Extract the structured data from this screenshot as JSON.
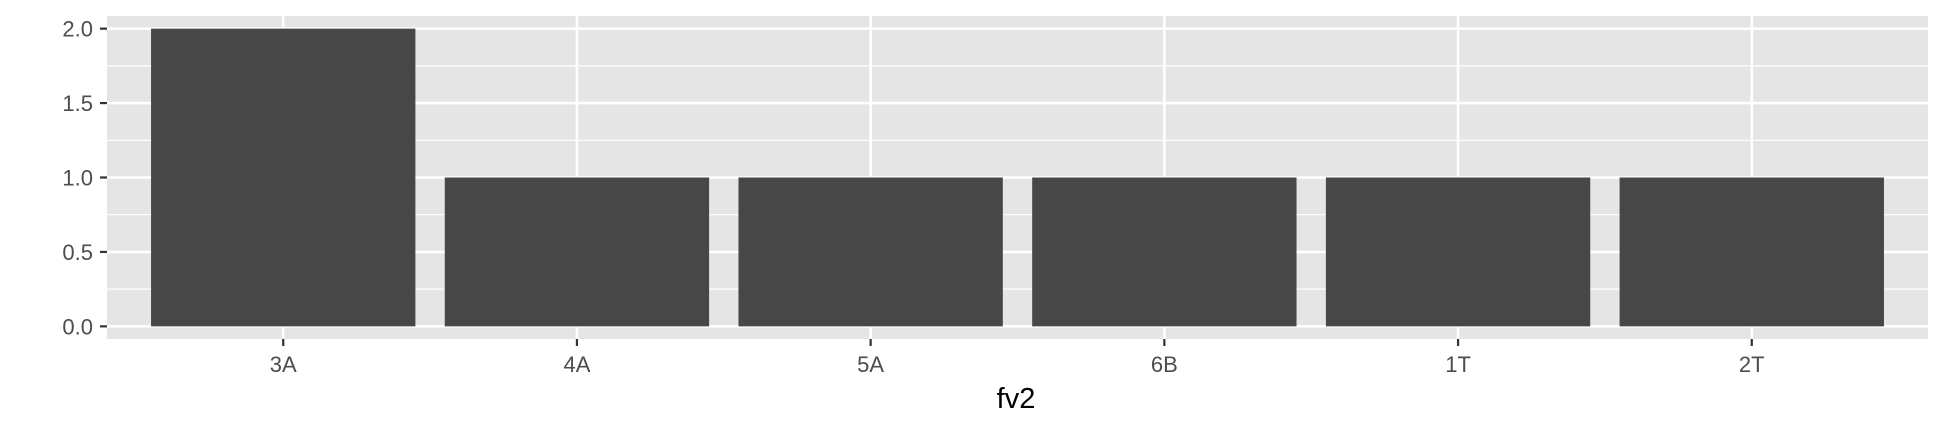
{
  "chart_data": {
    "type": "bar",
    "categories": [
      "3A",
      "4A",
      "5A",
      "6B",
      "1T",
      "2T"
    ],
    "values": [
      2,
      1,
      1,
      1,
      1,
      1
    ],
    "title": "",
    "xlabel": "fv2",
    "ylabel": "",
    "ylim": [
      -0.085,
      2.085
    ],
    "yticks": [
      "0.0",
      "0.5",
      "1.0",
      "1.5",
      "2.0"
    ],
    "grid": true,
    "legend": "none",
    "colors": {
      "bar": "#474747",
      "panel": "#e5e5e5",
      "grid": "#ffffff",
      "tick_text": "#4d4d4d",
      "tick_mark": "#333333"
    }
  }
}
